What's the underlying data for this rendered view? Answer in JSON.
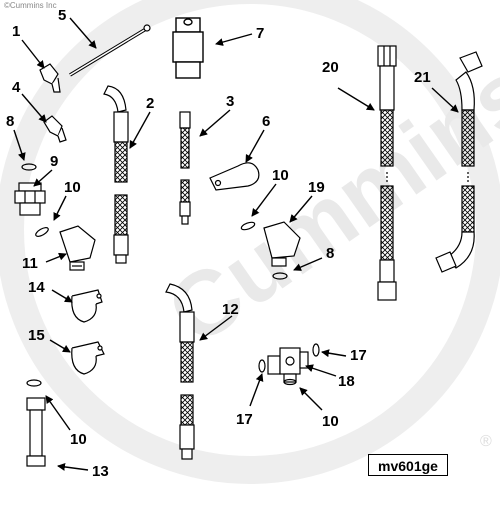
{
  "diagram": {
    "copyright": "©Cummins Inc",
    "watermark": "Cummins",
    "registered_mark": "®",
    "code": "mv601ge",
    "callouts": [
      "1",
      "2",
      "3",
      "4",
      "5",
      "6",
      "7",
      "8",
      "9",
      "10",
      "11",
      "13",
      "14",
      "15",
      "17",
      "18",
      "19",
      "20",
      "21",
      "12"
    ],
    "callouts_repeat": {
      "c8b": "8",
      "c10b": "10",
      "c10c": "10",
      "c10d": "10",
      "c10e": "10",
      "c17b": "17"
    }
  },
  "colors": {
    "line": "#000000",
    "watermark": "#e9e9e9",
    "background": "#ffffff"
  }
}
